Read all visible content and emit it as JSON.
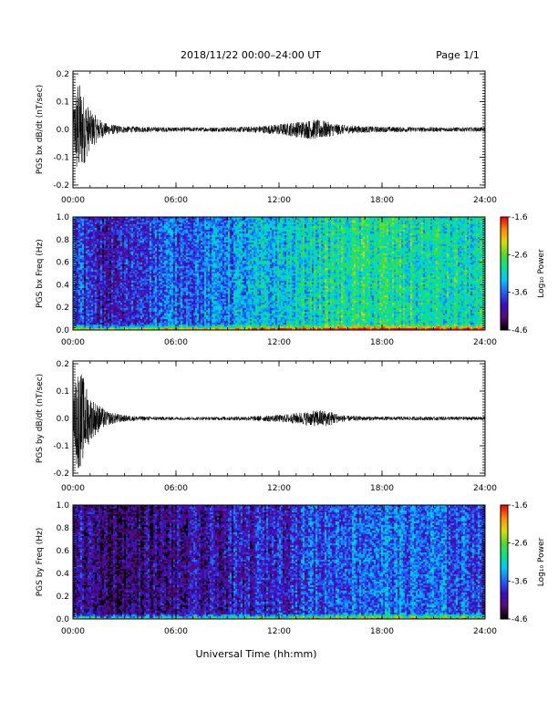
{
  "header": {
    "title": "2018/11/22  00:00–24:00 UT",
    "page": "Page 1/1"
  },
  "xaxis_label": "Universal Time (hh:mm)",
  "colors": {
    "trace": "#000000",
    "colorscale": [
      "#000000",
      "#5a0a78",
      "#3c0cc8",
      "#1e64ff",
      "#00c8ff",
      "#00e68c",
      "#50dc28",
      "#dcdc00",
      "#ff8c00",
      "#ff0000"
    ]
  },
  "chart_data": [
    {
      "type": "line",
      "id": "bx_wave",
      "ylabel": "PGS bx dB/dt (nT/sec)",
      "xlim": [
        0,
        24
      ],
      "ylim": [
        -0.21,
        0.21
      ],
      "x_ticks": [
        "00:00",
        "06:00",
        "12:00",
        "18:00",
        "24:00"
      ],
      "y_ticks": [
        "0.2",
        "0.1",
        "0.0",
        "-0.1",
        "-0.2"
      ],
      "y_tick_values": [
        0.2,
        0.1,
        0.0,
        -0.1,
        -0.2
      ],
      "series": [
        {
          "x": [
            0,
            0.25,
            0.5,
            1,
            1.5,
            2,
            3,
            4,
            6,
            8,
            10,
            11,
            12,
            12.5,
            13,
            13.5,
            14,
            14.5,
            15,
            15.5,
            16,
            17,
            18,
            20,
            22,
            24
          ],
          "amplitude": [
            0.05,
            0.19,
            0.15,
            0.07,
            0.04,
            0.02,
            0.012,
            0.01,
            0.008,
            0.008,
            0.01,
            0.013,
            0.02,
            0.023,
            0.028,
            0.032,
            0.036,
            0.034,
            0.025,
            0.019,
            0.015,
            0.012,
            0.01,
            0.009,
            0.008,
            0.008
          ]
        }
      ]
    },
    {
      "type": "heatmap",
      "id": "bx_spec",
      "ylabel": "PGS bx Freq (Hz)",
      "xlim": [
        0,
        24
      ],
      "ylim": [
        0,
        1.0
      ],
      "x_ticks": [
        "00:00",
        "06:00",
        "12:00",
        "18:00",
        "24:00"
      ],
      "y_ticks": [
        "1.0",
        "0.8",
        "0.6",
        "0.4",
        "0.2",
        "0.0"
      ],
      "y_tick_values": [
        1.0,
        0.8,
        0.6,
        0.4,
        0.2,
        0.0
      ],
      "colorbar": {
        "label": "Log₁₀ Power",
        "range": [
          -4.6,
          -1.6
        ],
        "ticks": [
          "-1.6",
          "-2.6",
          "-3.6",
          "-4.6"
        ],
        "tick_values": [
          -1.6,
          -2.6,
          -3.6,
          -4.6
        ]
      },
      "background_profile": {
        "x": [
          0,
          1,
          2,
          3,
          4,
          6,
          8,
          10,
          12,
          14,
          16,
          18,
          20,
          22,
          24
        ],
        "log_power": [
          -3.7,
          -3.95,
          -4.05,
          -3.95,
          -3.75,
          -3.6,
          -3.55,
          -3.4,
          -3.25,
          -3.05,
          -2.95,
          -2.95,
          -3.0,
          -3.05,
          -3.1
        ]
      }
    },
    {
      "type": "line",
      "id": "by_wave",
      "ylabel": "PGS by dB/dt (nT/sec)",
      "xlim": [
        0,
        24
      ],
      "ylim": [
        -0.21,
        0.21
      ],
      "x_ticks": [
        "00:00",
        "06:00",
        "12:00",
        "18:00",
        "24:00"
      ],
      "y_ticks": [
        "0.2",
        "0.1",
        "0.0",
        "-0.1",
        "-0.2"
      ],
      "y_tick_values": [
        0.2,
        0.1,
        0.0,
        -0.1,
        -0.2
      ],
      "series": [
        {
          "x": [
            0,
            0.25,
            0.5,
            1,
            1.5,
            2,
            3,
            4,
            6,
            8,
            10,
            11,
            12,
            12.5,
            13,
            13.5,
            14,
            14.5,
            15,
            15.5,
            16,
            17,
            18,
            20,
            22,
            24
          ],
          "amplitude": [
            0.04,
            0.2,
            0.17,
            0.08,
            0.05,
            0.025,
            0.012,
            0.008,
            0.006,
            0.006,
            0.008,
            0.01,
            0.013,
            0.016,
            0.02,
            0.024,
            0.028,
            0.032,
            0.026,
            0.015,
            0.01,
            0.008,
            0.007,
            0.007,
            0.007,
            0.007
          ]
        }
      ]
    },
    {
      "type": "heatmap",
      "id": "by_spec",
      "ylabel": "PGS by Freq (Hz)",
      "xlim": [
        0,
        24
      ],
      "ylim": [
        0,
        1.0
      ],
      "x_ticks": [
        "00:00",
        "06:00",
        "12:00",
        "18:00",
        "24:00"
      ],
      "y_ticks": [
        "1.0",
        "0.8",
        "0.6",
        "0.4",
        "0.2",
        "0.0"
      ],
      "y_tick_values": [
        1.0,
        0.8,
        0.6,
        0.4,
        0.2,
        0.0
      ],
      "colorbar": {
        "label": "Log₁₀ Power",
        "range": [
          -4.6,
          -1.6
        ],
        "ticks": [
          "-1.6",
          "-2.6",
          "-3.6",
          "-4.6"
        ],
        "tick_values": [
          -1.6,
          -2.6,
          -3.6,
          -4.6
        ]
      },
      "background_profile": {
        "x": [
          0,
          1,
          2,
          3,
          4,
          6,
          8,
          10,
          12,
          14,
          16,
          18,
          20,
          22,
          24
        ],
        "log_power": [
          -4.0,
          -4.2,
          -4.3,
          -4.3,
          -4.25,
          -4.2,
          -4.1,
          -4.0,
          -3.85,
          -3.7,
          -3.6,
          -3.55,
          -3.6,
          -3.65,
          -3.7
        ]
      }
    }
  ]
}
